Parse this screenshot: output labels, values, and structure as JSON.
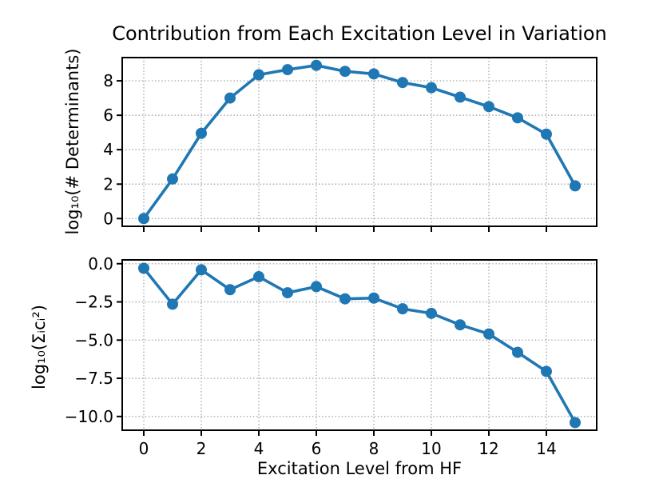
{
  "figure": {
    "title": "Contribution from Each Excitation Level in Variation",
    "xlabel": "Excitation Level from HF",
    "colors": {
      "series": "#1f77b4",
      "grid": "#ababab",
      "frame": "#000000",
      "background": "#ffffff",
      "text": "#000000"
    }
  },
  "chart_data": [
    {
      "type": "line",
      "name": "determinants-per-excitation-level",
      "title": "",
      "xlabel": "",
      "ylabel": "log₁₀(# Determinants)",
      "x": [
        0,
        1,
        2,
        3,
        4,
        5,
        6,
        7,
        8,
        9,
        10,
        11,
        12,
        13,
        14,
        15
      ],
      "values": [
        0.0,
        2.3,
        4.95,
        7.0,
        8.35,
        8.65,
        8.9,
        8.55,
        8.4,
        7.9,
        7.6,
        7.05,
        6.5,
        5.85,
        4.9,
        1.9
      ],
      "xlim": [
        -0.75,
        15.75
      ],
      "ylim": [
        -0.45,
        9.35
      ],
      "xticks": [
        0,
        2,
        4,
        6,
        8,
        10,
        12,
        14
      ],
      "xticklabels": [],
      "yticks": [
        0,
        2,
        4,
        6,
        8
      ],
      "yticklabels": [
        "0",
        "2",
        "4",
        "6",
        "8"
      ],
      "grid": true,
      "grid_style": "dotted",
      "legend": null,
      "marker": "circle",
      "marker_size": 7,
      "line_width": 3.6
    },
    {
      "type": "line",
      "name": "coefficient-weight-per-excitation-level",
      "title": "",
      "xlabel": "Excitation Level from HF",
      "ylabel": "log₁₀(Σᵢcᵢ²)",
      "x": [
        0,
        1,
        2,
        3,
        4,
        5,
        6,
        7,
        8,
        9,
        10,
        11,
        12,
        13,
        14,
        15
      ],
      "values": [
        -0.3,
        -2.65,
        -0.4,
        -1.7,
        -0.85,
        -1.9,
        -1.5,
        -2.3,
        -2.25,
        -2.95,
        -3.25,
        -4.0,
        -4.6,
        -5.8,
        -7.05,
        -10.4
      ],
      "xlim": [
        -0.75,
        15.75
      ],
      "ylim": [
        -10.9,
        0.25
      ],
      "xticks": [
        0,
        2,
        4,
        6,
        8,
        10,
        12,
        14
      ],
      "xticklabels": [
        "0",
        "2",
        "4",
        "6",
        "8",
        "10",
        "12",
        "14"
      ],
      "yticks": [
        0,
        -2.5,
        -5,
        -7.5,
        -10
      ],
      "yticklabels": [
        "0.0",
        "−2.5",
        "−5.0",
        "−7.5",
        "−10.0"
      ],
      "grid": true,
      "grid_style": "dotted",
      "legend": null,
      "marker": "circle",
      "marker_size": 7,
      "line_width": 3.6
    }
  ]
}
